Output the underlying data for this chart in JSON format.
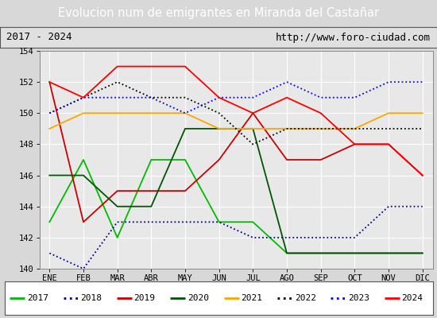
{
  "title": "Evolucion num de emigrantes en Miranda del Castañar",
  "subtitle_left": "2017 - 2024",
  "subtitle_right": "http://www.foro-ciudad.com",
  "months": [
    "ENE",
    "FEB",
    "MAR",
    "ABR",
    "MAY",
    "JUN",
    "JUL",
    "AGO",
    "SEP",
    "OCT",
    "NOV",
    "DIC"
  ],
  "ylim": [
    140,
    154
  ],
  "yticks": [
    140,
    142,
    144,
    146,
    148,
    150,
    152,
    154
  ],
  "series": {
    "2017": {
      "color": "#00bb00",
      "linestyle": "-",
      "linewidth": 1.3,
      "values": [
        143,
        147,
        142,
        147,
        147,
        143,
        143,
        141,
        141,
        141,
        141,
        141
      ]
    },
    "2018": {
      "color": "#00008b",
      "linestyle": "dotted",
      "linewidth": 1.3,
      "values": [
        141,
        140,
        143,
        143,
        143,
        143,
        142,
        142,
        142,
        142,
        144,
        144
      ]
    },
    "2019": {
      "color": "#cc0000",
      "linestyle": "-",
      "linewidth": 1.3,
      "values": [
        152,
        143,
        145,
        145,
        145,
        147,
        150,
        147,
        147,
        148,
        148,
        146
      ]
    },
    "2020": {
      "color": "#005500",
      "linestyle": "-",
      "linewidth": 1.3,
      "values": [
        146,
        146,
        144,
        144,
        149,
        149,
        149,
        141,
        141,
        141,
        141,
        141
      ]
    },
    "2021": {
      "color": "#ffa500",
      "linestyle": "-",
      "linewidth": 1.3,
      "values": [
        149,
        150,
        150,
        150,
        150,
        149,
        149,
        149,
        149,
        149,
        150,
        150
      ]
    },
    "2022": {
      "color": "#000000",
      "linestyle": "dotted",
      "linewidth": 1.3,
      "values": [
        150,
        151,
        152,
        151,
        151,
        150,
        148,
        149,
        149,
        149,
        149,
        149
      ]
    },
    "2023": {
      "color": "#0000ff",
      "linestyle": "dotted",
      "linewidth": 1.3,
      "values": [
        150,
        151,
        151,
        151,
        150,
        151,
        151,
        152,
        151,
        151,
        152,
        152
      ]
    },
    "2024": {
      "color": "#ff0000",
      "linestyle": "-",
      "linewidth": 1.3,
      "values": [
        152,
        151,
        153,
        153,
        153,
        151,
        150,
        151,
        150,
        148,
        148,
        146
      ]
    }
  },
  "legend_order": [
    "2017",
    "2018",
    "2019",
    "2020",
    "2021",
    "2022",
    "2023",
    "2024"
  ],
  "bg_color": "#d8d8d8",
  "plot_bg_color": "#e8e8e8",
  "title_bg_color": "#4f86c6",
  "title_text_color": "#ffffff",
  "subtitle_bg_color": "#e0e0e0"
}
